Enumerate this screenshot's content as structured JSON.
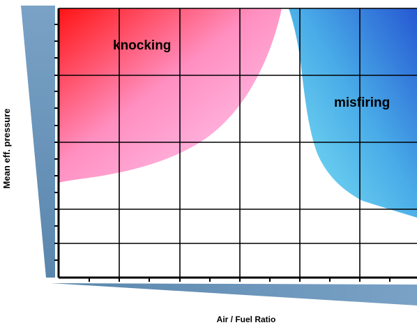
{
  "regions": {
    "knocking": {
      "label": "knocking",
      "color_top": "#ff1a1a",
      "color_bottom": "#ffc2f2"
    },
    "misfiring": {
      "label": "misfiring",
      "color_left": "#6fe0f2",
      "color_right": "#1c5fd6"
    }
  },
  "axes": {
    "x_label": "Air / Fuel Ratio",
    "y_label": "Mean eff. pressure",
    "wedge_color": "#6b93b8"
  },
  "grid": {
    "line_color": "#000000"
  }
}
